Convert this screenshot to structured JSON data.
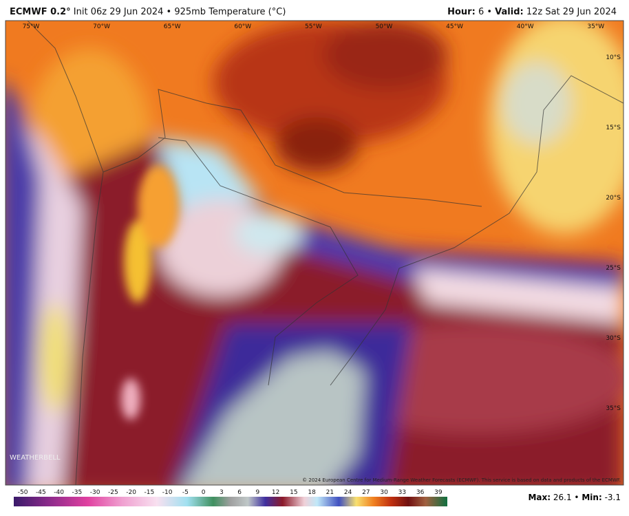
{
  "header": {
    "model": "ECMWF 0.2°",
    "subtitle": "Init 06z 29 Jun 2024 • 925mb Temperature (°C)",
    "hour_label": "Hour:",
    "hour": "6 •",
    "valid_label": "Valid:",
    "valid": "12z Sat 29 Jun 2024"
  },
  "map": {
    "lon_labels": [
      "75°W",
      "70°W",
      "65°W",
      "60°W",
      "55°W",
      "50°W",
      "45°W",
      "40°W",
      "35°W"
    ],
    "lat_labels": [
      "10°S",
      "15°S",
      "20°S",
      "25°S",
      "30°S",
      "35°S"
    ],
    "copyright": "© 2024 European Centre for Medium-Range Weather Forecasts (ECMWF). This service is based on data and products of the ECMWF.",
    "logo": "WEATHERBELL"
  },
  "colorbar": {
    "labels": [
      -50,
      -45,
      -40,
      -35,
      -30,
      -25,
      -20,
      -15,
      -10,
      -5,
      0,
      3,
      6,
      9,
      12,
      15,
      18,
      21,
      24,
      27,
      30,
      33,
      36,
      39
    ]
  },
  "footer": {
    "max_label": "Max:",
    "max": "26.1 •",
    "min_label": "Min:",
    "min": "-3.1"
  }
}
